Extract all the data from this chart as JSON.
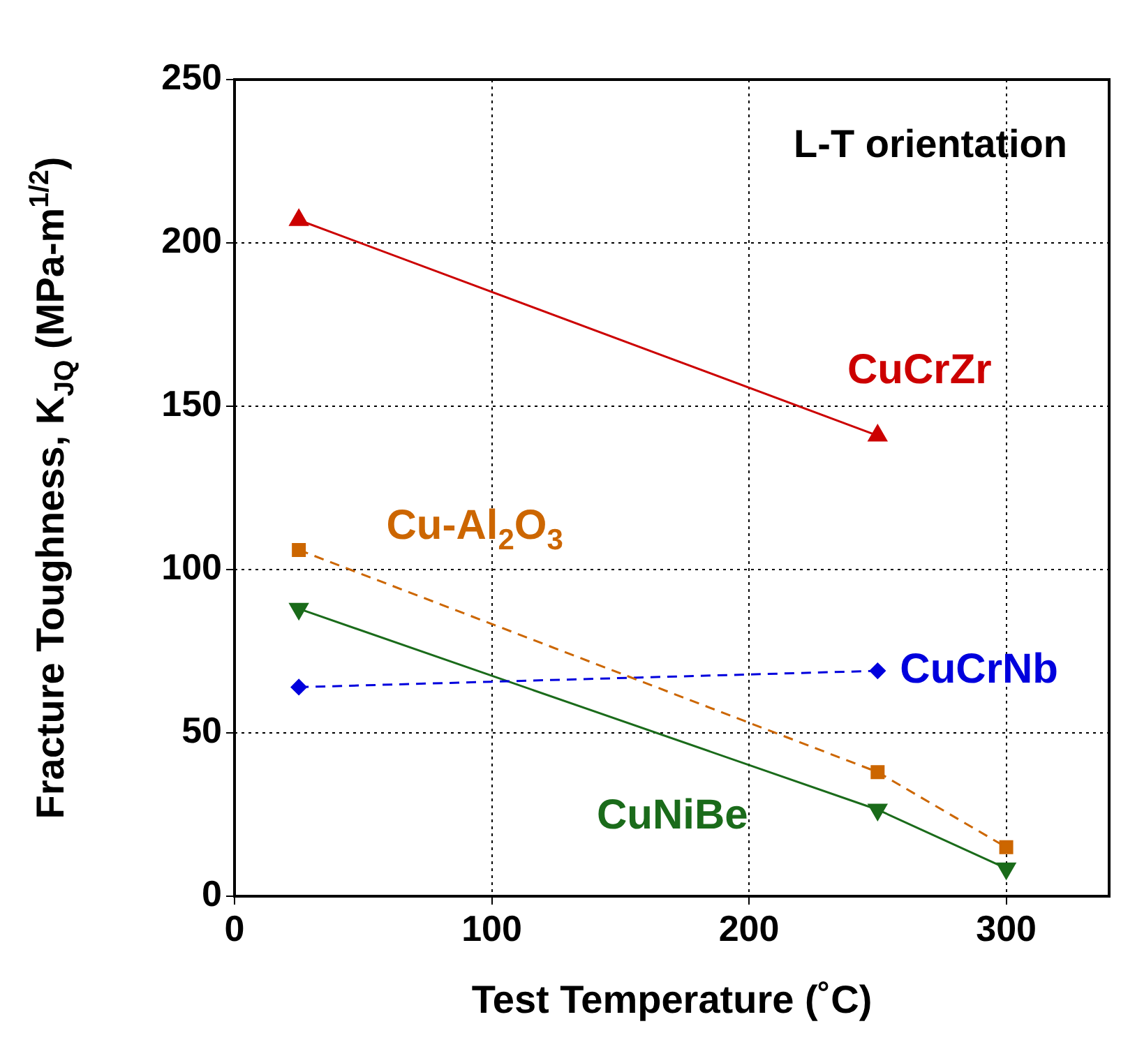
{
  "chart_data": {
    "type": "line",
    "xlabel": "Test Temperature (˚C)",
    "ylabel": "Fracture Toughness, K$_{JQ}$ (MPa-m$^{1/2}$)",
    "annotations": [
      "L-T orientation"
    ],
    "xlim": [
      0,
      340
    ],
    "xticks": [
      0,
      100,
      200,
      300
    ],
    "ylim": [
      0,
      250
    ],
    "yticks": [
      0,
      50,
      100,
      150,
      200,
      250
    ],
    "grid": true,
    "legend": false,
    "series": [
      {
        "name": "CuCrZr",
        "color": "#cc0000",
        "x": [
          25,
          250
        ],
        "values": [
          207,
          141
        ],
        "marker": "triangle",
        "line_style": "solid"
      },
      {
        "name": "Cu-Al$_{2}$O$_{3}$",
        "color": "#cc6600",
        "x": [
          25,
          250,
          300
        ],
        "values": [
          106,
          38,
          15
        ],
        "marker": "square",
        "line_style": "dashed"
      },
      {
        "name": "CuCrNb",
        "color": "#0000dd",
        "x": [
          25,
          250
        ],
        "values": [
          64,
          69
        ],
        "marker": "diamond",
        "line_style": "dashed"
      },
      {
        "name": "CuNiBe",
        "color": "#1a6b1a",
        "x": [
          25,
          250,
          300
        ],
        "values": [
          88,
          26.5,
          8.5
        ],
        "marker": "triangle-down",
        "line_style": "solid"
      }
    ]
  }
}
